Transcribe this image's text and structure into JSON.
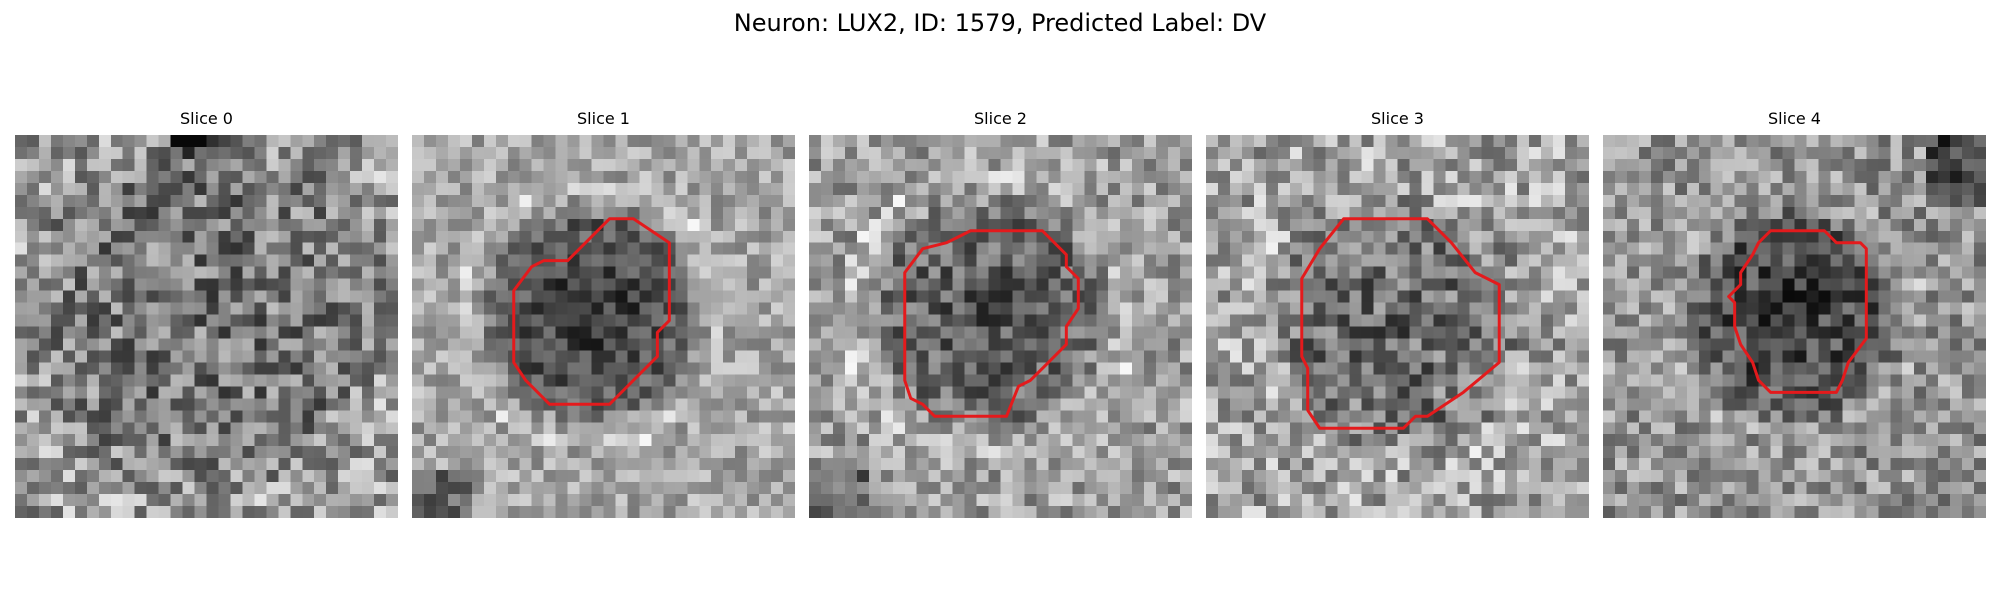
{
  "figure": {
    "title": "Neuron: LUX2, ID: 1579, Predicted Label: DV"
  },
  "panels": [
    {
      "title": "Slice 0",
      "has_contour": false
    },
    {
      "title": "Slice 1",
      "has_contour": true
    },
    {
      "title": "Slice 2",
      "has_contour": true
    },
    {
      "title": "Slice 3",
      "has_contour": true
    },
    {
      "title": "Slice 4",
      "has_contour": true
    }
  ],
  "colors": {
    "contour": "#e41a1c",
    "colormap": "grayscale",
    "background": "#ffffff"
  }
}
